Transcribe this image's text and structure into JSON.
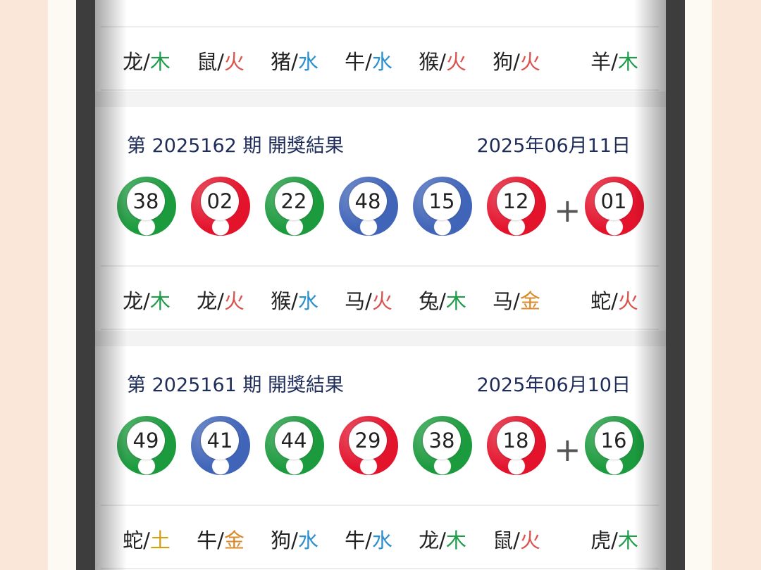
{
  "colors": {
    "green": "#1c9a3e",
    "red": "#e3132c",
    "blue": "#4064b8",
    "木": "#1f9d4a",
    "火": "#d9534f",
    "水": "#2b90cf",
    "金": "#d98a2a",
    "土": "#d2a015"
  },
  "plus": "+",
  "top_zodiac": [
    [
      "龙",
      "木"
    ],
    [
      "鼠",
      "火"
    ],
    [
      "猪",
      "水"
    ],
    [
      "牛",
      "水"
    ],
    [
      "猴",
      "火"
    ],
    [
      "狗",
      "火"
    ],
    [
      "羊",
      "木"
    ]
  ],
  "draws": [
    {
      "period": "第 2025162 期 開獎結果",
      "date": "2025年06月11日",
      "balls": [
        {
          "n": "38",
          "c": "green"
        },
        {
          "n": "02",
          "c": "red"
        },
        {
          "n": "22",
          "c": "green"
        },
        {
          "n": "48",
          "c": "blue"
        },
        {
          "n": "15",
          "c": "blue"
        },
        {
          "n": "12",
          "c": "red"
        },
        {
          "n": "01",
          "c": "red"
        }
      ],
      "zodiac": [
        [
          "龙",
          "木"
        ],
        [
          "龙",
          "火"
        ],
        [
          "猴",
          "水"
        ],
        [
          "马",
          "火"
        ],
        [
          "兔",
          "木"
        ],
        [
          "马",
          "金"
        ],
        [
          "蛇",
          "火"
        ]
      ]
    },
    {
      "period": "第 2025161 期 開獎結果",
      "date": "2025年06月10日",
      "balls": [
        {
          "n": "49",
          "c": "green"
        },
        {
          "n": "41",
          "c": "blue"
        },
        {
          "n": "44",
          "c": "green"
        },
        {
          "n": "29",
          "c": "red"
        },
        {
          "n": "38",
          "c": "green"
        },
        {
          "n": "18",
          "c": "red"
        },
        {
          "n": "16",
          "c": "green"
        }
      ],
      "zodiac": [
        [
          "蛇",
          "土"
        ],
        [
          "牛",
          "金"
        ],
        [
          "狗",
          "水"
        ],
        [
          "牛",
          "水"
        ],
        [
          "龙",
          "木"
        ],
        [
          "鼠",
          "火"
        ],
        [
          "虎",
          "木"
        ]
      ]
    }
  ]
}
